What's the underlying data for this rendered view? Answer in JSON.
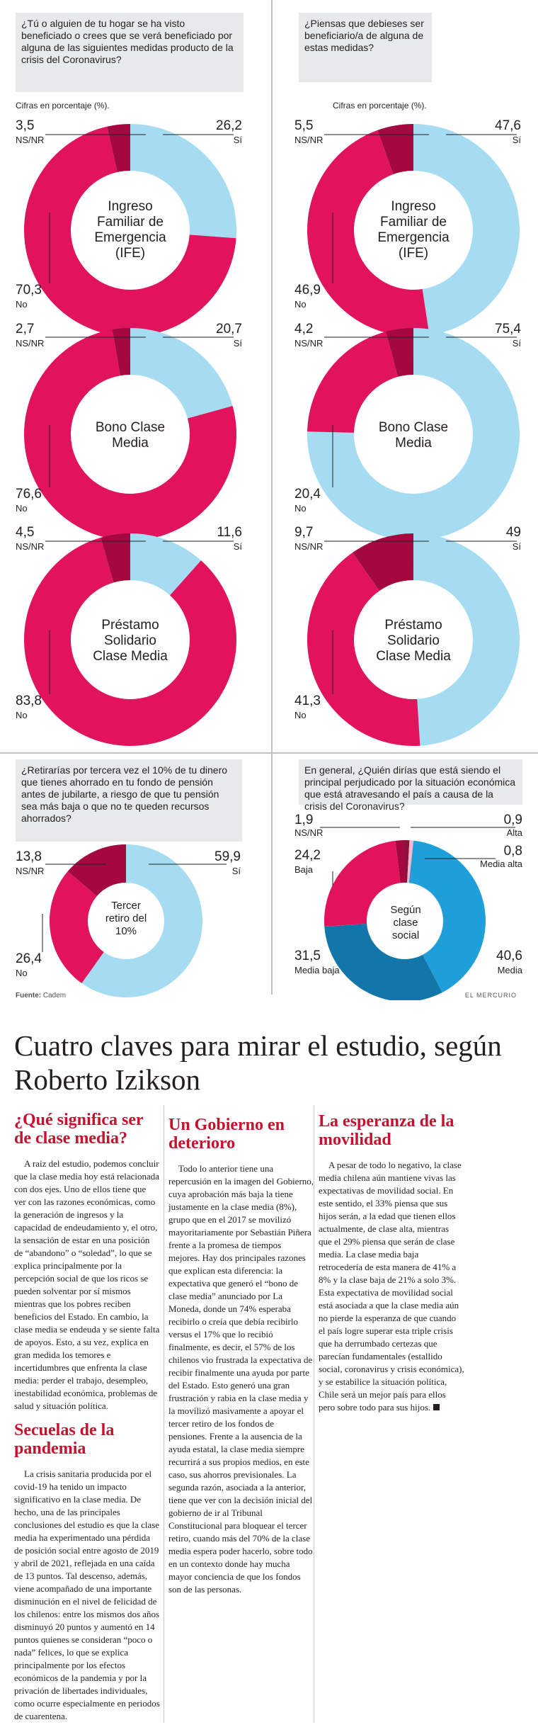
{
  "colors": {
    "no": "#e0135c",
    "si": "#a6dcf2",
    "nsnr": "#a3093f",
    "alta": "#8a1538",
    "media_alta": "#f3b7cf",
    "media": "#1e9fd9",
    "media_baja": "#1376a8",
    "baja": "#e0135c"
  },
  "panels": {
    "top_left": {
      "question": "¿Tú o alguien de tu hogar se ha visto beneficiado o crees que se verá beneficiado por alguna de las siguientes medidas producto de la crisis del Coronavirus?",
      "caption": "Cifras en porcentaje (%)."
    },
    "top_right": {
      "question": "¿Piensas que debieses ser beneficiario/a de alguna de estas medidas?",
      "caption": "Cifras en porcentaje (%)."
    },
    "bottom_left": {
      "question": "¿Retirarías por tercera vez el 10% de tu dinero que tienes ahorrado en tu fondo de pensión antes de jubilarte, a riesgo de que tu pensión sea más baja o que no te queden recursos ahorrados?"
    },
    "bottom_right": {
      "question": "En general, ¿Quién dirías que está siendo el principal perjudicado por la situación económica que está atravesando el país a causa de la crisis del Coronavirus?"
    }
  },
  "chart_data": [
    {
      "type": "pie",
      "title": "Ingreso Familiar de Emergencia (IFE)",
      "panel": "beneficiado",
      "slices": [
        {
          "label": "Sí",
          "value": "26,2"
        },
        {
          "label": "No",
          "value": "70,3"
        },
        {
          "label": "NS/NR",
          "value": "3,5"
        }
      ]
    },
    {
      "type": "pie",
      "title": "Bono Clase Media",
      "panel": "beneficiado",
      "slices": [
        {
          "label": "Sí",
          "value": "20,7"
        },
        {
          "label": "No",
          "value": "76,6"
        },
        {
          "label": "NS/NR",
          "value": "2,7"
        }
      ]
    },
    {
      "type": "pie",
      "title": "Préstamo Solidario Clase Media",
      "panel": "beneficiado",
      "slices": [
        {
          "label": "Sí",
          "value": "11,6"
        },
        {
          "label": "No",
          "value": "83,8"
        },
        {
          "label": "NS/NR",
          "value": "4,5"
        }
      ]
    },
    {
      "type": "pie",
      "title": "Ingreso Familiar de Emergencia (IFE)",
      "panel": "debiese",
      "slices": [
        {
          "label": "Sí",
          "value": "47,6"
        },
        {
          "label": "No",
          "value": "46,9"
        },
        {
          "label": "NS/NR",
          "value": "5,5"
        }
      ]
    },
    {
      "type": "pie",
      "title": "Bono Clase Media",
      "panel": "debiese",
      "slices": [
        {
          "label": "Sí",
          "value": "75,4"
        },
        {
          "label": "No",
          "value": "20,4"
        },
        {
          "label": "NS/NR",
          "value": "4,2"
        }
      ]
    },
    {
      "type": "pie",
      "title": "Préstamo Solidario Clase Media",
      "panel": "debiese",
      "slices": [
        {
          "label": "Sí",
          "value": "49"
        },
        {
          "label": "No",
          "value": "41,3"
        },
        {
          "label": "NS/NR",
          "value": "9,7"
        }
      ]
    },
    {
      "type": "pie",
      "title": "Tercer retiro del 10%",
      "panel": "retiro",
      "slices": [
        {
          "label": "Sí",
          "value": "59,9"
        },
        {
          "label": "No",
          "value": "26,4"
        },
        {
          "label": "NS/NR",
          "value": "13,8"
        }
      ]
    },
    {
      "type": "pie",
      "title": "Según clase social",
      "panel": "perjudicado",
      "slices": [
        {
          "label": "Alta",
          "value": "0,9"
        },
        {
          "label": "Media alta",
          "value": "0,8"
        },
        {
          "label": "Media",
          "value": "40,6"
        },
        {
          "label": "Media baja",
          "value": "31,5"
        },
        {
          "label": "Baja",
          "value": "24,2"
        },
        {
          "label": "NS/NR",
          "value": "1,9"
        }
      ]
    }
  ],
  "source": {
    "label": "Fuente:",
    "value": "Cadem"
  },
  "brand": "EL MERCURIO",
  "article": {
    "headline": "Cuatro claves para mirar el estudio, según Roberto Izikson",
    "sections": {
      "s1_title": "¿Qué significa ser de clase media?",
      "s1_p1": "A raíz del estudio, podemos concluir que la clase media hoy está relacionada con dos ejes. Uno de ellos tiene que ver con las razones económicas, como la generación de ingresos y la capacidad de endeudamiento y, el otro, la sensación de estar en una posición de “abandono” o “soledad”, lo que se explica principalmente por la percepción social de que los ricos se pueden solventar por sí mismos mientras que los pobres reciben beneficios del Estado. En cambio, la clase media se endeuda y se siente falta de apoyos. Esto, a su vez, explica en gran medida los temores e incertidumbres que enfrenta la clase media: perder el trabajo, desempleo, inestabilidad económica, problemas de salud y situación política.",
      "s2_title": "Secuelas de la pandemia",
      "s2_p1": "La crisis sanitaria producida por el covid-19 ha tenido un impacto significativo en la clase media. De hecho, una de las principales conclusiones del estudio es que la clase media ha experimentado una pérdida de posición social entre agosto de 2019 y abril de 2021, reflejada en una caída de 13 puntos. Tal descenso, además, viene acompañado de una importante disminución en el nivel de felicidad de los chilenos: entre los mismos dos años disminuyó 20 puntos y aumentó en 14 puntos quienes se consideran “poco o nada” felices, lo que se explica principalmente por los efectos económicos de la pandemia y por la privación de libertades individuales, como ocurre especialmente en periodos de cuarentena.",
      "s3_title": "Un Gobierno en deterioro",
      "s3_p1": "Todo lo anterior tiene una repercusión en la imagen del Gobierno, cuya aprobación más baja la tiene justamente en la clase media (8%), grupo que en el 2017 se movilizó mayoritariamente por Sebastián Piñera frente a la promesa de tiempos mejores. Hay dos principales razones que explican esta diferencia: la expectativa que generó el “bono de clase media” anunciado por La Moneda, donde un 74% esperaba recibirlo o creía que debía recibirlo versus el 17% que lo recibió finalmente, es decir, el 57% de los chilenos vio frustrada la expectativa de recibir finalmente una ayuda por parte del Estado. Esto generó una gran frustración y rabia en la clase media y la movilizó masivamente a apoyar el tercer retiro de los fondos de pensiones. Frente a la ausencia de la ayuda estatal, la clase media siempre recurrirá a sus propios medios, en este caso, sus ahorros previsionales. La segunda razón, asociada a la anterior, tiene que ver con la decisión inicial del gobierno de ir al Tribunal Constitucional para bloquear el tercer retiro, cuando más del 70% de la clase media espera poder hacerlo, sobre todo en un contexto donde hay mucha mayor conciencia de que los fondos son de las personas.",
      "s4_title": "La esperanza de la movilidad",
      "s4_p1": "A pesar de todo lo negativo, la clase media chilena aún mantiene vivas las expectativas de movilidad social. En este sentido, el 33% piensa que sus hijos serán, a la edad que tienen ellos actualmente, de clase alta, mientras que el 29% piensa que serán de clase media. La clase media baja retrocedería de esta manera de 41% a 8% y la clase baja de 21% a solo 3%. Esta expectativa de movilidad social está asociada a que la clase media aún no pierde la esperanza de que cuando el país logre superar esta triple crisis que ha derrumbado certezas que parecían fundamentales (estallido social, coronavirus y crisis económica), y se estabilice la situación política, Chile será un mejor país para ellos pero sobre todo para sus hijos."
    }
  }
}
